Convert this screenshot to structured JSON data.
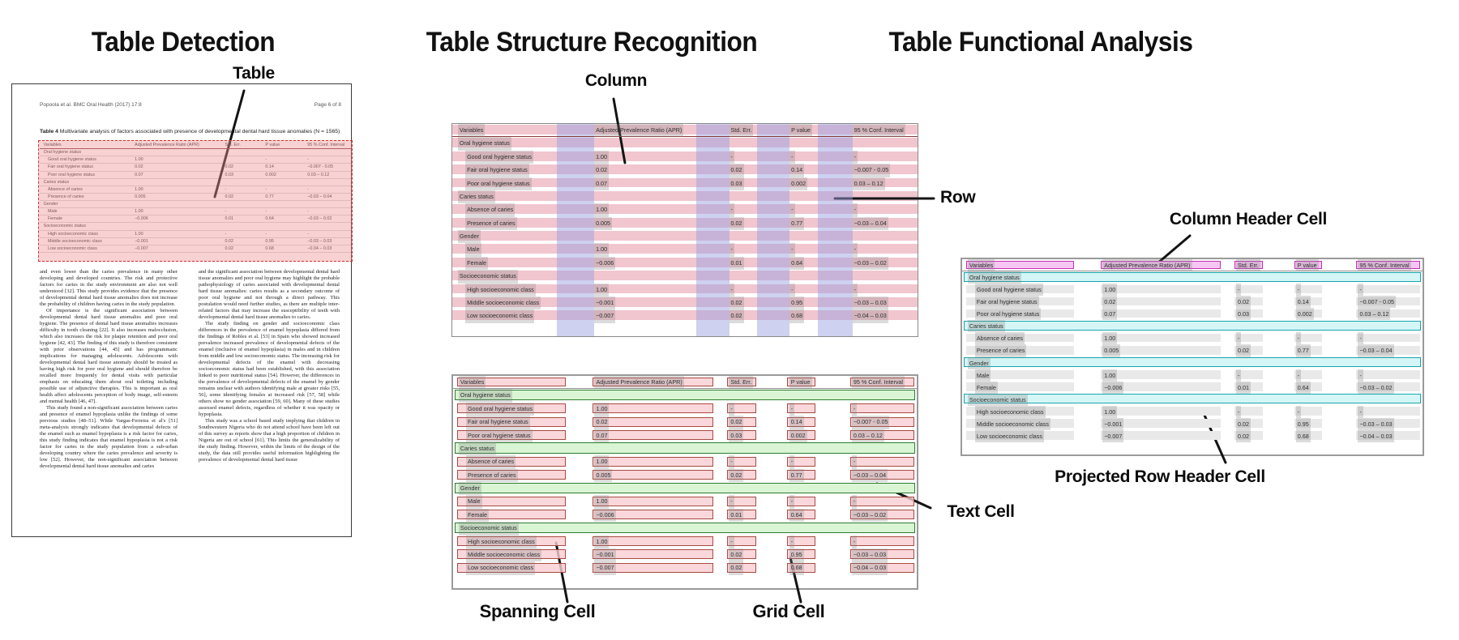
{
  "panels": {
    "detection": {
      "title": "Table Detection",
      "callouts": {
        "table": "Table"
      }
    },
    "structure": {
      "title": "Table Structure Recognition",
      "callouts": {
        "column": "Column",
        "row": "Row",
        "text_cell": "Text Cell",
        "spanning_cell": "Spanning Cell",
        "grid_cell": "Grid Cell"
      }
    },
    "functional": {
      "title": "Table Functional Analysis",
      "callouts": {
        "column_header_cell": "Column Header Cell",
        "projected_row_header_cell": "Projected Row Header Cell"
      }
    }
  },
  "document": {
    "header_left": "Popoola et al. BMC Oral Health  (2017) 17:8",
    "header_right": "Page 6 of 8",
    "caption_label": "Table 4",
    "caption_text": " Multivariate analysis of factors associated with presence of developmental dental hard tissue anomalies (N = 1565)",
    "body_left": [
      "and even lower than the caries prevalence in many other developing and developed countries. The risk and protective factors for caries in the study environment are also not well understood [32]. This study provides evidence that the presence of developmental dental hard tissue anomalies does not increase the probability of children having caries in the study population.",
      "Of importance is the significant association between developmental dental hard tissue anomalies and poor oral hygiene. The presence of dental hard tissue anomalies increases difficulty in tooth cleaning [22]. It also increases malocclusion, which also increases the risk for plaque retention and poor oral hygiene [42, 43]. The finding of this study is therefore consistent with prior observations [44, 45] and has programmatic implications for managing adolescents. Adolescents with developmental dental hard tissue anomaly should be treated as having high risk for poor oral hygiene and should therefore be recalled more frequently for dental visits with particular emphasis on educating them about oral toileting including possible use of adjunctive therapies. This is important as oral health affect adolescents perception of body image, self-esteem and mental health [46, 47].",
      "This study found a non-significant association between caries and presence of enamel hypoplasia unlike the findings of some previous studies [48–51]. While Vargas-Ferreira et al's [51] meta-analysis strongly indicates that developmental defects of the enamel such as enamel hypoplasia is a risk factor for caries, this study finding indicates that enamel hypoplasia is not a risk factor for caries in the study population from a sub-urban developing country where the caries prevalence and severity is low [52]. However, the non-significant association between developmental dental hard tissue anomalies and caries"
    ],
    "body_right": [
      "and the significant association between developmental dental hard tissue anomalies and poor oral hygiene may highlight the probable pathophysiology of caries associated with developmental dental hard tissue anomalies: caries results as a secondary outcome of poor oral hygiene and not through a direct pathway. This postulation would need further studies, as there are multiple inter-related factors that may increase the susceptibility of teeth with developmental dental hard tissue anomalies to caries.",
      "The study finding on gender and socioeconomic class differences in the prevalence of enamel hypoplasia differed from the findings of Robles et al. [53] in Spain who showed increased prevalence increased prevalence of developmental defects of the enamel (inclusive of enamel hypoplasia) in males and in children from middle and low socioeconomic status. The increasing risk for developmental defects of the enamel with decreasing socioeconomic status had been established, with this association linked to poor nutritional status [54]. However, the differences in the prevalence of developmental defects of the enamel by gender remains unclear with authors identifying male at greater risks [55, 56], some identifying females at increased risk [57, 58] while others show no gender association [59, 60]. Many of these studies assessed enamel defects, regardless of whether it was opacity or hypoplasia.",
      "This study was a school based study implying that children in Southwestern Nigeria who do not attend school have been left out of this survey as reports show that a high proportion of children in Nigeria are out of school [61]. This limits the generalizability of the study finding. However, within the limits of the design of the study, the data still provides useful information highlighting the prevalence of developmental dental hard tissue"
    ]
  },
  "table": {
    "columns": [
      "Variables",
      "Adjusted Prevalence Ratio (APR)",
      "Std. Err.",
      "P value",
      "95 % Conf. Interval"
    ],
    "rows": [
      {
        "type": "section",
        "cells": [
          "Oral hygiene status"
        ]
      },
      {
        "type": "data",
        "cells": [
          "Good oral hygiene status",
          "1.00",
          "-",
          "-",
          "-"
        ]
      },
      {
        "type": "data",
        "cells": [
          "Fair oral hygiene status",
          "0.02",
          "0.02",
          "0.14",
          "−0.007 - 0.05"
        ]
      },
      {
        "type": "data",
        "cells": [
          "Poor oral hygiene status",
          "0.07",
          "0.03",
          "0.002",
          "0.03 – 0.12"
        ]
      },
      {
        "type": "section",
        "cells": [
          "Caries status"
        ]
      },
      {
        "type": "data",
        "cells": [
          "Absence of caries",
          "1.00",
          "-",
          "-",
          "-"
        ]
      },
      {
        "type": "data",
        "cells": [
          "Presence of caries",
          "0.005",
          "0.02",
          "0.77",
          "−0.03 – 0.04"
        ]
      },
      {
        "type": "section",
        "cells": [
          "Gender"
        ]
      },
      {
        "type": "data",
        "cells": [
          "Male",
          "1.00",
          "-",
          "-",
          "-"
        ]
      },
      {
        "type": "data",
        "cells": [
          "Female",
          "−0.006",
          "0.01",
          "0.64",
          "−0.03 – 0.02"
        ]
      },
      {
        "type": "section",
        "cells": [
          "Socioeconomic status"
        ]
      },
      {
        "type": "data",
        "cells": [
          "High socioeconomic class",
          "1.00",
          "-",
          "-",
          "-"
        ]
      },
      {
        "type": "data",
        "cells": [
          "Middle socioeconomic class",
          "−0.001",
          "0.02",
          "0.95",
          "−0.03 – 0.03"
        ]
      },
      {
        "type": "data",
        "cells": [
          "Low socioeconomic class",
          "−0.007",
          "0.02",
          "0.68",
          "−0.04 – 0.03"
        ]
      }
    ]
  },
  "colors": {
    "detection_fill": "rgba(238,148,148,0.42)",
    "detection_border": "#cc3333",
    "row_band": "rgba(222,118,140,0.42)",
    "column_band": "rgba(152,158,224,0.48)",
    "grid_cell_fill": "rgba(248,205,210,0.8)",
    "grid_cell_border": "#a94a42",
    "spanning_cell_fill": "#d9f5d3",
    "spanning_cell_border": "#2e7d32",
    "column_header_fill": "#f7c7f3",
    "column_header_border": "#c431b7",
    "projected_row_header_fill": "#d5f6f6",
    "projected_row_header_border": "#18a6ac",
    "data_cell_fill": "#e9e9e9",
    "text_highlight": "rgba(128,128,128,0.28)",
    "doc_header_rule": "#8b3a3a",
    "viz_header_rule": "#909090"
  }
}
